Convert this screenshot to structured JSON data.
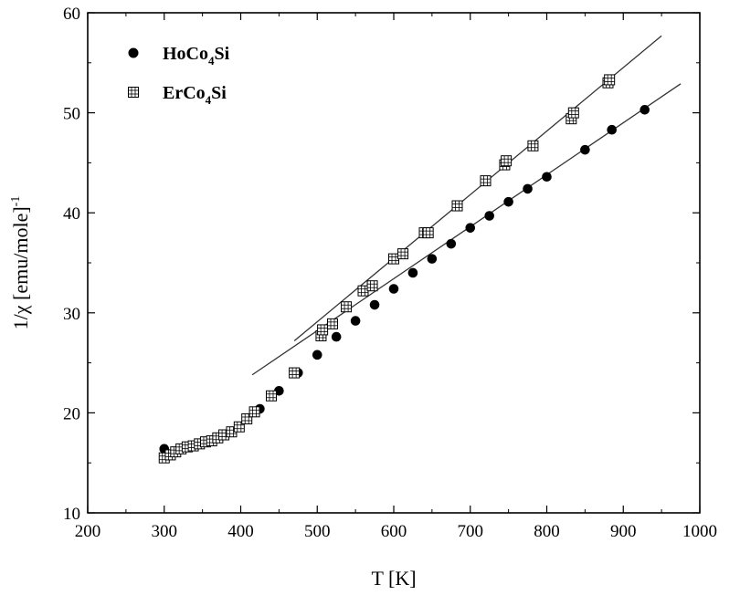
{
  "chart_data": {
    "type": "scatter",
    "xlabel": "T [K]",
    "ylabel": "1/χ [emu/mole]",
    "ylabel_superscript": "-1",
    "xlim": [
      200,
      1000
    ],
    "ylim": [
      10,
      60
    ],
    "x_ticks": [
      200,
      300,
      400,
      500,
      600,
      700,
      800,
      900,
      1000
    ],
    "y_ticks": [
      10,
      20,
      30,
      40,
      50,
      60
    ],
    "grid": false,
    "legend_position": "top-left",
    "series": [
      {
        "name_parts": [
          "HoCo",
          "4",
          "Si"
        ],
        "marker": "filled-circle",
        "points": [
          [
            300,
            16.4
          ],
          [
            425,
            20.4
          ],
          [
            450,
            22.2
          ],
          [
            475,
            24.0
          ],
          [
            500,
            25.8
          ],
          [
            525,
            27.6
          ],
          [
            550,
            29.2
          ],
          [
            575,
            30.8
          ],
          [
            600,
            32.4
          ],
          [
            625,
            34.0
          ],
          [
            650,
            35.4
          ],
          [
            675,
            36.9
          ],
          [
            700,
            38.5
          ],
          [
            725,
            39.7
          ],
          [
            750,
            41.1
          ],
          [
            775,
            42.4
          ],
          [
            800,
            43.6
          ],
          [
            850,
            46.3
          ],
          [
            885,
            48.3
          ],
          [
            928,
            50.3
          ]
        ],
        "fit_line": [
          [
            415,
            23.8
          ],
          [
            975,
            52.9
          ]
        ]
      },
      {
        "name_parts": [
          "ErCo",
          "4",
          "Si"
        ],
        "marker": "boxed-cross-square",
        "points": [
          [
            300,
            15.5
          ],
          [
            308,
            15.8
          ],
          [
            315,
            16.1
          ],
          [
            322,
            16.4
          ],
          [
            330,
            16.6
          ],
          [
            338,
            16.7
          ],
          [
            346,
            16.9
          ],
          [
            354,
            17.1
          ],
          [
            362,
            17.2
          ],
          [
            370,
            17.5
          ],
          [
            378,
            17.8
          ],
          [
            388,
            18.1
          ],
          [
            398,
            18.6
          ],
          [
            408,
            19.4
          ],
          [
            418,
            20.1
          ],
          [
            440,
            21.7
          ],
          [
            470,
            24.0
          ],
          [
            505,
            27.7
          ],
          [
            507,
            28.3
          ],
          [
            520,
            28.9
          ],
          [
            538,
            30.6
          ],
          [
            560,
            32.2
          ],
          [
            572,
            32.7
          ],
          [
            600,
            35.4
          ],
          [
            612,
            35.9
          ],
          [
            640,
            38.0
          ],
          [
            645,
            38.0
          ],
          [
            683,
            40.7
          ],
          [
            720,
            43.2
          ],
          [
            745,
            44.8
          ],
          [
            747,
            45.2
          ],
          [
            782,
            46.7
          ],
          [
            832,
            49.4
          ],
          [
            835,
            50.0
          ],
          [
            880,
            53.0
          ],
          [
            882,
            53.3
          ]
        ],
        "fit_line": [
          [
            470,
            27.2
          ],
          [
            950,
            57.7
          ]
        ]
      }
    ]
  }
}
